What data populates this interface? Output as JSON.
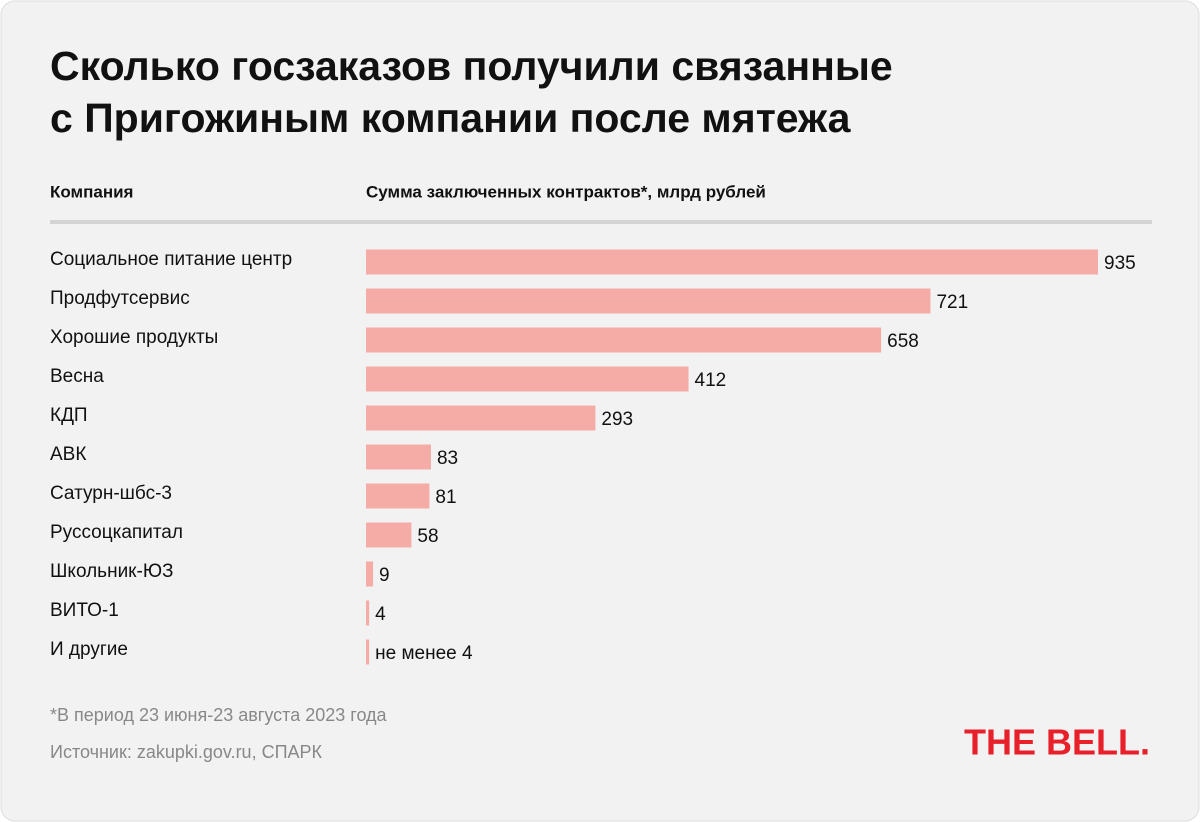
{
  "chart_data": {
    "type": "bar",
    "orientation": "horizontal",
    "title": "Сколько госзаказов получили связанные\nс Пригожиным компании после мятежа",
    "category_header": "Компания",
    "value_header": "Сумма заключенных контрактов*, млрд рублей",
    "categories": [
      "Социальное питание центр",
      "Продфутсервис",
      "Хорошие продукты",
      "Весна",
      "КДП",
      "АВК",
      "Сатурн-шбс-3",
      "Руссоцкапитал",
      "Школьник-ЮЗ",
      "ВИТО-1",
      "И другие"
    ],
    "values": [
      935,
      721,
      658,
      412,
      293,
      83,
      81,
      58,
      9,
      4,
      4
    ],
    "value_labels": [
      "935",
      "721",
      "658",
      "412",
      "293",
      "83",
      "81",
      "58",
      "9",
      "4",
      "не менее 4"
    ],
    "color": "#f5aca7",
    "note": "*В период 23 июня-23 августа 2023 года",
    "source": "Источник: zakupki.gov.ru, СПАРК",
    "logo": "THE BELL."
  }
}
